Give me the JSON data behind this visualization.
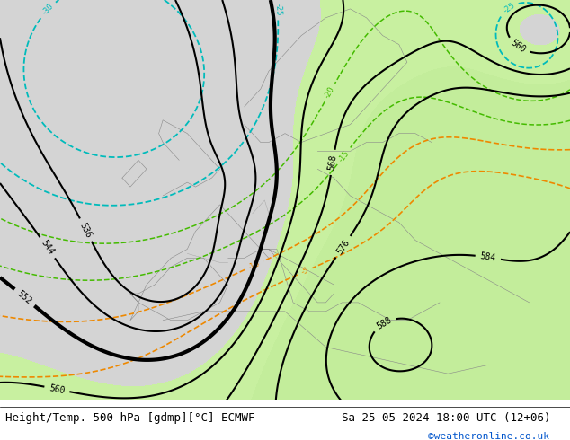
{
  "title_left": "Height/Temp. 500 hPa [gdmp][°C] ECMWF",
  "title_right": "Sa 25-05-2024 18:00 UTC (12+06)",
  "credit": "©weatheronline.co.uk",
  "background_color": "#ffffff",
  "land_green": "#c8f0a0",
  "ocean_gray": "#d4d4d4",
  "border_color": "#888888",
  "contour_black": "#000000",
  "contour_cyan": "#00bbbb",
  "contour_orange": "#ee8800",
  "contour_green": "#44bb00",
  "contour_red": "#cc0000",
  "label_fontsize": 7,
  "footer_fontsize": 9,
  "figsize": [
    6.34,
    4.9
  ],
  "dpi": 100
}
